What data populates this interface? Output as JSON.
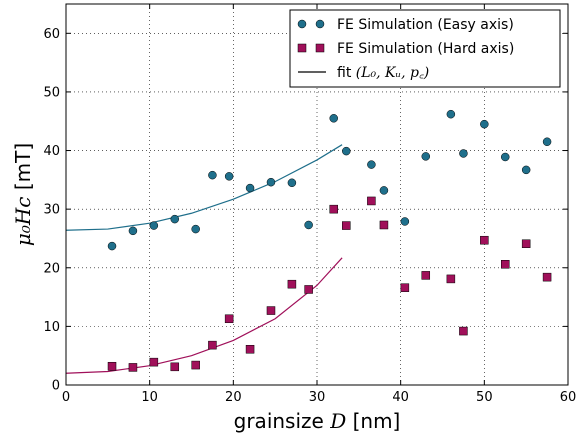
{
  "chart_data": {
    "type": "scatter",
    "xlabel_text": "grainsize",
    "xlabel_math": "D",
    "xlabel_unit": "[nm]",
    "ylabel_math": "μ₀Hc",
    "ylabel_unit": "[mT]",
    "xlim": [
      0,
      60
    ],
    "ylim": [
      0,
      65
    ],
    "xticks": [
      0,
      10,
      20,
      30,
      40,
      50,
      60
    ],
    "yticks": [
      0,
      10,
      20,
      30,
      40,
      50,
      60
    ],
    "grid": true,
    "legend_position": "top-right",
    "series": [
      {
        "name": "FE Simulation (Easy axis)",
        "kind": "scatter",
        "marker": "circle",
        "color": "#1f6f8b",
        "points": [
          [
            5.5,
            23.7
          ],
          [
            8.0,
            26.3
          ],
          [
            10.5,
            27.2
          ],
          [
            13.0,
            28.3
          ],
          [
            15.5,
            26.6
          ],
          [
            17.5,
            35.8
          ],
          [
            19.5,
            35.6
          ],
          [
            22.0,
            33.6
          ],
          [
            24.5,
            34.6
          ],
          [
            27.0,
            34.5
          ],
          [
            29.0,
            27.3
          ],
          [
            32.0,
            45.5
          ],
          [
            33.5,
            39.9
          ],
          [
            36.5,
            37.6
          ],
          [
            38.0,
            33.2
          ],
          [
            40.5,
            27.9
          ],
          [
            43.0,
            39.0
          ],
          [
            46.0,
            46.2
          ],
          [
            47.5,
            39.5
          ],
          [
            50.0,
            44.5
          ],
          [
            52.5,
            38.9
          ],
          [
            55.0,
            36.7
          ],
          [
            57.5,
            41.5
          ]
        ]
      },
      {
        "name": "FE Simulation (Hard axis)",
        "kind": "scatter",
        "marker": "square",
        "color": "#a0105a",
        "points": [
          [
            5.5,
            3.2
          ],
          [
            8.0,
            3.0
          ],
          [
            10.5,
            3.9
          ],
          [
            13.0,
            3.1
          ],
          [
            15.5,
            3.4
          ],
          [
            17.5,
            6.8
          ],
          [
            19.5,
            11.3
          ],
          [
            22.0,
            6.1
          ],
          [
            24.5,
            12.7
          ],
          [
            27.0,
            17.2
          ],
          [
            29.0,
            16.3
          ],
          [
            32.0,
            30.0
          ],
          [
            33.5,
            27.2
          ],
          [
            36.5,
            31.4
          ],
          [
            38.0,
            27.3
          ],
          [
            40.5,
            16.6
          ],
          [
            43.0,
            18.7
          ],
          [
            46.0,
            18.1
          ],
          [
            47.5,
            9.2
          ],
          [
            50.0,
            24.7
          ],
          [
            52.5,
            20.6
          ],
          [
            55.0,
            24.1
          ],
          [
            57.5,
            18.4
          ]
        ]
      },
      {
        "name": "fit",
        "legend_suffix": "(L₀, Kᵤ, p꜀)",
        "kind": "line",
        "color": "#000000",
        "fit_easy_color": "#1f6f8b",
        "fit_hard_color": "#a0105a",
        "fit_easy": [
          [
            0,
            26.4
          ],
          [
            5,
            26.6
          ],
          [
            10,
            27.6
          ],
          [
            15,
            29.3
          ],
          [
            20,
            31.7
          ],
          [
            25,
            34.7
          ],
          [
            30,
            38.4
          ],
          [
            33,
            41.0
          ]
        ],
        "fit_hard": [
          [
            0,
            2.0
          ],
          [
            5,
            2.3
          ],
          [
            10,
            3.3
          ],
          [
            15,
            5.0
          ],
          [
            20,
            7.6
          ],
          [
            25,
            11.3
          ],
          [
            30,
            17.0
          ],
          [
            33,
            21.7
          ]
        ]
      }
    ]
  }
}
